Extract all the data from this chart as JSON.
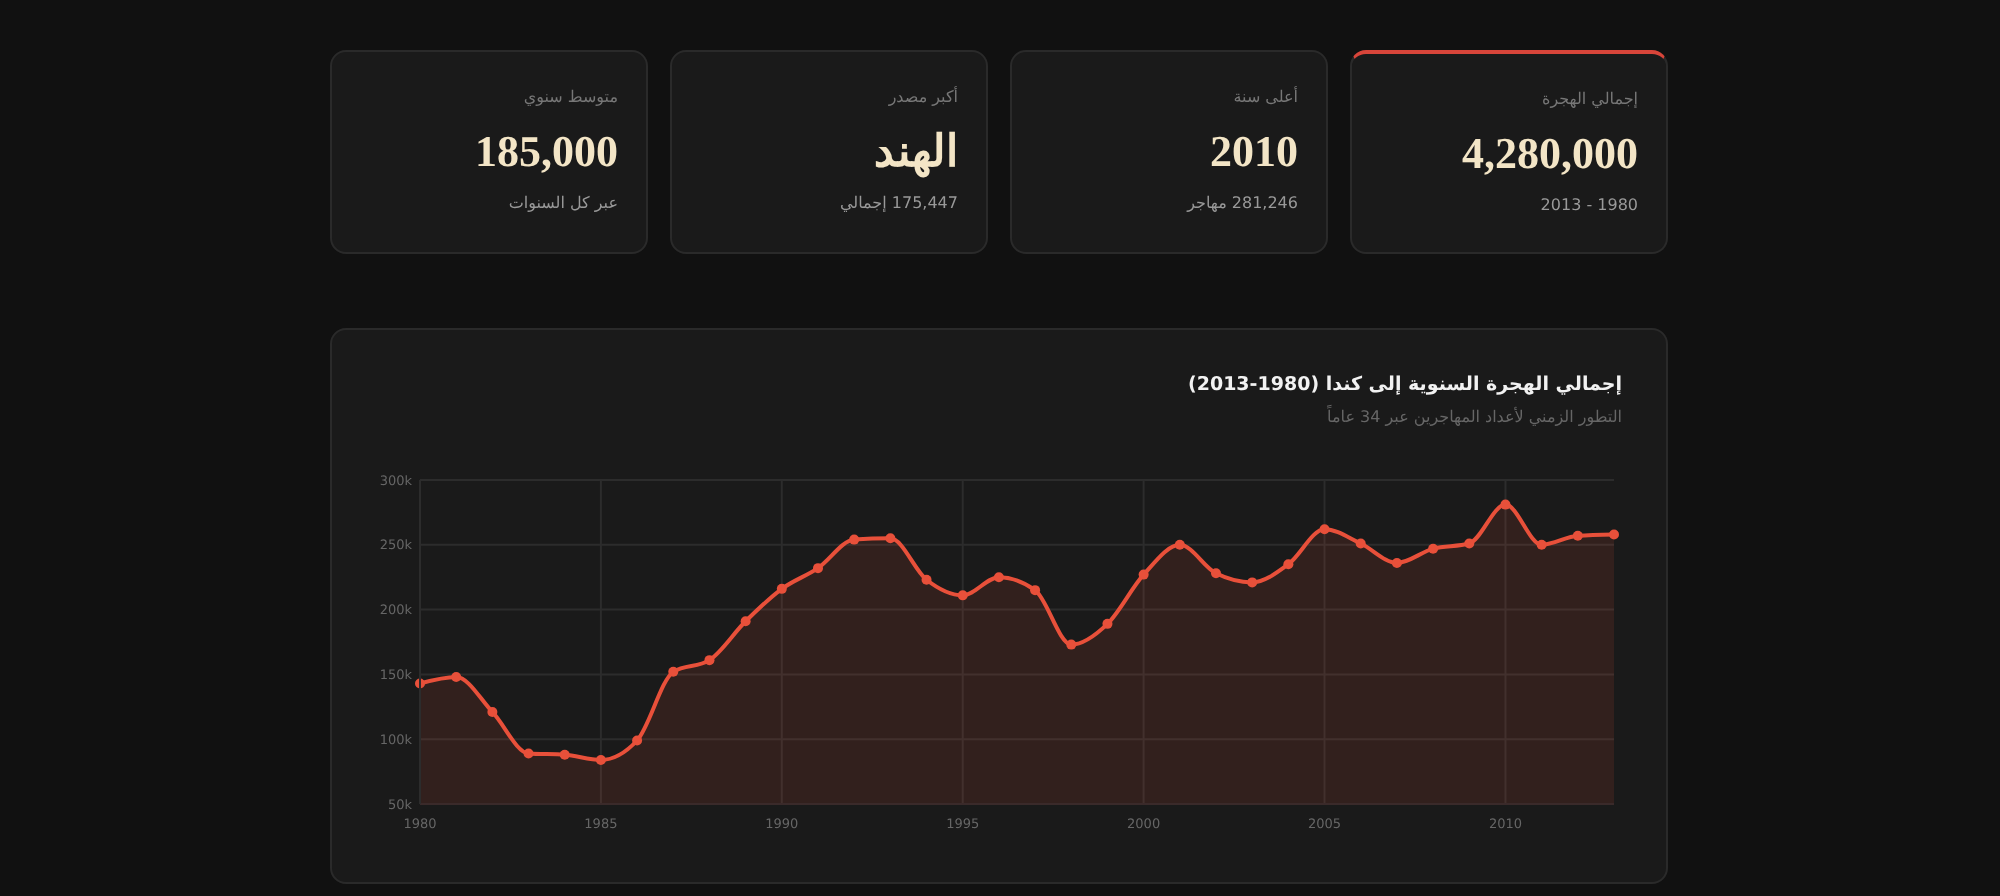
{
  "chart_data": [
    {
      "type": "other",
      "annotations": [
        "إجمالي الهجرة",
        "4,280,000",
        "1980 - 2013",
        "أعلى سنة",
        "2010",
        "281,246 مهاجر",
        "أكبر مصدر",
        "الهند",
        "175,447 إجمالي",
        "متوسط سنوي",
        "185,000",
        "عبر كل السنوات"
      ]
    },
    {
      "type": "area",
      "title": "إجمالي الهجرة السنوية إلى كندا (1980-2013)",
      "subtitle": "التطور الزمني لأعداد المهاجرين عبر 34 عاماً",
      "x": [
        1980,
        1981,
        1982,
        1983,
        1984,
        1985,
        1986,
        1987,
        1988,
        1989,
        1990,
        1991,
        1992,
        1993,
        1994,
        1995,
        1996,
        1997,
        1998,
        1999,
        2000,
        2001,
        2002,
        2003,
        2004,
        2005,
        2006,
        2007,
        2008,
        2009,
        2010,
        2011,
        2012,
        2013
      ],
      "series": [
        {
          "color": "#e8503a",
          "values": [
            143000,
            148000,
            121000,
            89000,
            88000,
            84000,
            99000,
            152000,
            161000,
            191000,
            216000,
            232000,
            254000,
            255000,
            223000,
            211000,
            225000,
            215000,
            173000,
            189000,
            227000,
            250000,
            228000,
            221000,
            235000,
            262000,
            251000,
            236000,
            247000,
            251000,
            281000,
            250000,
            257000,
            258000
          ]
        }
      ],
      "xlim": [
        1980,
        2013
      ],
      "xticks": [
        1980,
        1985,
        1990,
        1995,
        2000,
        2005,
        2010
      ],
      "ylim": [
        50000,
        300000
      ],
      "yticks": [
        {
          "value": 50000,
          "label": "50k"
        },
        {
          "value": 100000,
          "label": "100k"
        },
        {
          "value": 150000,
          "label": "150k"
        },
        {
          "value": 200000,
          "label": "200k"
        },
        {
          "value": 250000,
          "label": "250k"
        },
        {
          "value": 300000,
          "label": "300k"
        }
      ],
      "grid": true,
      "marker": "circle",
      "line_style": "solid"
    }
  ]
}
